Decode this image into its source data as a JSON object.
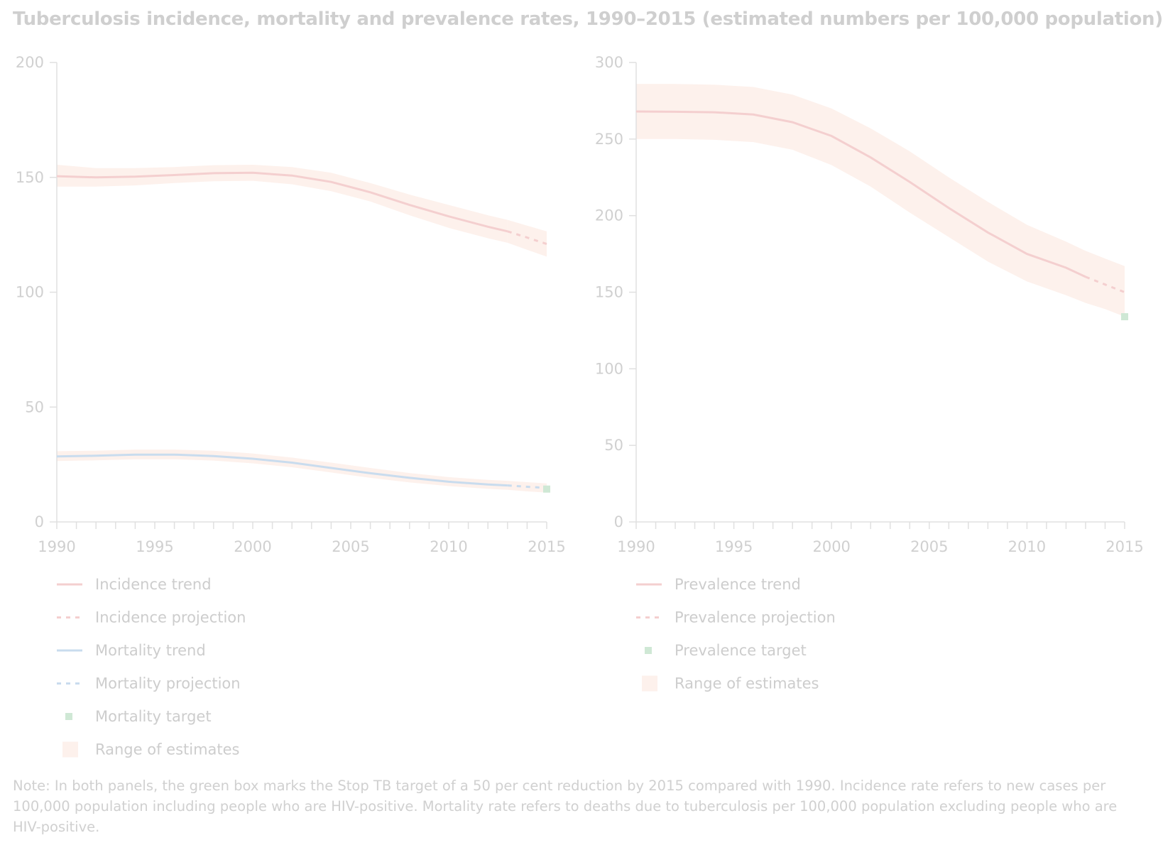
{
  "title": "Tuberculosis incidence, mortality and prevalence rates, 1990–2015 (estimated numbers per 100,000 population)",
  "note": "Note: In both panels, the green box marks the Stop TB target of a 50 per cent reduction by 2015 compared with 1990. Incidence rate refers to new cases per 100,000 population including people who are HIV-positive. Mortality rate refers to deaths due to tuberculosis per 100,000 population excluding people who are HIV-positive.",
  "colors": {
    "incidence": "#f4cfcf",
    "mortality": "#c9dcee",
    "target": "#cfe8d5",
    "range": "#fdf1ec",
    "axis": "#e0e0e0"
  },
  "chart_data": [
    {
      "type": "line",
      "xlim": [
        1990,
        2015
      ],
      "ylim": [
        0,
        200
      ],
      "xticks": [
        1990,
        1995,
        2000,
        2005,
        2010,
        2015
      ],
      "yticks": [
        0,
        50,
        100,
        150,
        200
      ],
      "legend_position": "bottom",
      "series": [
        {
          "name": "Incidence trend",
          "style": "solid",
          "color": "incidence",
          "x": [
            1990,
            1992,
            1994,
            1996,
            1998,
            2000,
            2002,
            2004,
            2006,
            2008,
            2010,
            2012,
            2013
          ],
          "y": [
            150.5,
            150,
            150.3,
            151,
            151.8,
            152,
            150.8,
            148,
            143.5,
            138,
            133,
            128.5,
            126.5
          ],
          "lower": [
            146,
            146,
            146.5,
            147.5,
            148.3,
            148.5,
            147,
            144,
            139.5,
            133.5,
            128,
            123.5,
            121.5
          ],
          "upper": [
            155.5,
            154,
            154,
            154.5,
            155.3,
            155.5,
            154.5,
            152,
            147.5,
            142.5,
            138,
            133.5,
            131.5
          ]
        },
        {
          "name": "Incidence projection",
          "style": "dashed",
          "color": "incidence",
          "x": [
            2013,
            2014,
            2015
          ],
          "y": [
            126.5,
            123.8,
            121
          ],
          "lower": [
            121.5,
            118.5,
            115.5
          ],
          "upper": [
            131.5,
            129,
            126.5
          ]
        },
        {
          "name": "Mortality trend",
          "style": "solid",
          "color": "mortality",
          "x": [
            1990,
            1992,
            1994,
            1996,
            1998,
            2000,
            2002,
            2004,
            2006,
            2008,
            2010,
            2012,
            2013
          ],
          "y": [
            28.5,
            28.8,
            29.3,
            29.3,
            28.7,
            27.5,
            25.8,
            23.5,
            21.2,
            19.2,
            17.5,
            16.3,
            15.9
          ],
          "lower": [
            26.5,
            26.8,
            27.3,
            27.3,
            26.7,
            25.5,
            23.8,
            21.5,
            19.2,
            17.2,
            15.6,
            14.4,
            14
          ],
          "upper": [
            30.8,
            31,
            31.5,
            31.5,
            31,
            29.8,
            28,
            25.8,
            23.5,
            21.3,
            19.5,
            18.3,
            17.9
          ]
        },
        {
          "name": "Mortality projection",
          "style": "dashed",
          "color": "mortality",
          "x": [
            2013,
            2014,
            2015
          ],
          "y": [
            15.9,
            15.3,
            14.8
          ],
          "lower": [
            14,
            13.3,
            12.8
          ],
          "upper": [
            17.9,
            17.3,
            16.8
          ]
        },
        {
          "name": "Mortality target",
          "style": "marker",
          "color": "target",
          "x": [
            2015
          ],
          "y": [
            14.3
          ]
        }
      ],
      "legend": [
        {
          "label": "Incidence trend",
          "kind": "solid",
          "color": "incidence"
        },
        {
          "label": "Incidence projection",
          "kind": "dashed",
          "color": "incidence"
        },
        {
          "label": "Mortality trend",
          "kind": "solid",
          "color": "mortality"
        },
        {
          "label": "Mortality projection",
          "kind": "dashed",
          "color": "mortality"
        },
        {
          "label": "Mortality target",
          "kind": "marker",
          "color": "target"
        },
        {
          "label": "Range of estimates",
          "kind": "box",
          "color": "range"
        }
      ]
    },
    {
      "type": "line",
      "xlim": [
        1990,
        2015
      ],
      "ylim": [
        0,
        300
      ],
      "xticks": [
        1990,
        1995,
        2000,
        2005,
        2010,
        2015
      ],
      "yticks": [
        0,
        50,
        100,
        150,
        200,
        250,
        300
      ],
      "legend_position": "bottom",
      "series": [
        {
          "name": "Prevalence trend",
          "style": "solid",
          "color": "incidence",
          "x": [
            1990,
            1992,
            1994,
            1996,
            1998,
            2000,
            2002,
            2004,
            2006,
            2008,
            2010,
            2012,
            2013
          ],
          "y": [
            268,
            267.8,
            267.5,
            266,
            261,
            252,
            238,
            222,
            205,
            189,
            175,
            166,
            160
          ],
          "lower": [
            250,
            250,
            249.5,
            248,
            243,
            233,
            219,
            202,
            186,
            170,
            157,
            148,
            143
          ],
          "upper": [
            286,
            286,
            285.5,
            284,
            279,
            270,
            257,
            242,
            225,
            209,
            194,
            183,
            177
          ]
        },
        {
          "name": "Prevalence projection",
          "style": "dashed",
          "color": "incidence",
          "x": [
            2013,
            2014,
            2015
          ],
          "y": [
            160,
            155,
            150
          ],
          "lower": [
            143,
            139,
            134
          ],
          "upper": [
            177,
            172,
            167
          ]
        },
        {
          "name": "Prevalence target",
          "style": "marker",
          "color": "target",
          "x": [
            2015
          ],
          "y": [
            134
          ]
        }
      ],
      "legend": [
        {
          "label": "Prevalence trend",
          "kind": "solid",
          "color": "incidence"
        },
        {
          "label": "Prevalence projection",
          "kind": "dashed",
          "color": "incidence"
        },
        {
          "label": "Prevalence target",
          "kind": "marker",
          "color": "target"
        },
        {
          "label": "Range of estimates",
          "kind": "box",
          "color": "range"
        }
      ]
    }
  ]
}
